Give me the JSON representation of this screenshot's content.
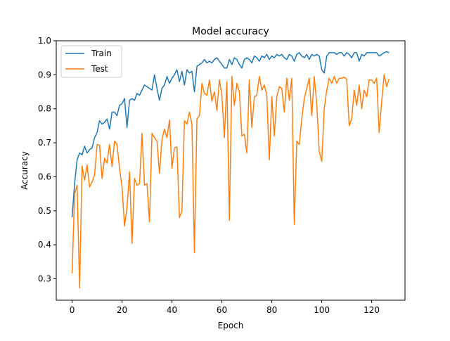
{
  "chart_data": {
    "type": "line",
    "title": "Model accuracy",
    "xlabel": "Epoch",
    "ylabel": "Accuracy",
    "xlim": [
      -6.35,
      133.35
    ],
    "ylim": [
      0.237,
      1.0
    ],
    "xticks": [
      0,
      20,
      40,
      60,
      80,
      100,
      120
    ],
    "yticks": [
      0.3,
      0.4,
      0.5,
      0.6,
      0.7,
      0.8,
      0.9,
      1.0
    ],
    "xtick_labels": [
      "0",
      "20",
      "40",
      "60",
      "80",
      "100",
      "120"
    ],
    "ytick_labels": [
      "0.3",
      "0.4",
      "0.5",
      "0.6",
      "0.7",
      "0.8",
      "0.9",
      "1.0"
    ],
    "grid": false,
    "legend_position": "upper-left",
    "series": [
      {
        "name": "Train",
        "color": "#1f77b4",
        "x": [
          0,
          1,
          2,
          3,
          4,
          5,
          6,
          7,
          8,
          9,
          10,
          11,
          12,
          13,
          14,
          15,
          16,
          17,
          18,
          19,
          20,
          21,
          22,
          23,
          24,
          25,
          26,
          27,
          28,
          29,
          30,
          31,
          32,
          33,
          34,
          35,
          36,
          37,
          38,
          39,
          40,
          41,
          42,
          43,
          44,
          45,
          46,
          47,
          48,
          49,
          50,
          51,
          52,
          53,
          54,
          55,
          56,
          57,
          58,
          59,
          60,
          61,
          62,
          63,
          64,
          65,
          66,
          67,
          68,
          69,
          70,
          71,
          72,
          73,
          74,
          75,
          76,
          77,
          78,
          79,
          80,
          81,
          82,
          83,
          84,
          85,
          86,
          87,
          88,
          89,
          90,
          91,
          92,
          93,
          94,
          95,
          96,
          97,
          98,
          99,
          100,
          101,
          102,
          103,
          104,
          105,
          106,
          107,
          108,
          109,
          110,
          111,
          112,
          113,
          114,
          115,
          116,
          117,
          118,
          119,
          120,
          121,
          122,
          123,
          124,
          125,
          126,
          127
        ],
        "values": [
          0.481,
          0.58,
          0.65,
          0.67,
          0.665,
          0.69,
          0.67,
          0.68,
          0.685,
          0.715,
          0.73,
          0.765,
          0.755,
          0.76,
          0.77,
          0.74,
          0.79,
          0.79,
          0.78,
          0.81,
          0.815,
          0.83,
          0.745,
          0.825,
          0.83,
          0.825,
          0.845,
          0.84,
          0.855,
          0.87,
          0.865,
          0.86,
          0.855,
          0.9,
          0.86,
          0.825,
          0.86,
          0.87,
          0.895,
          0.875,
          0.89,
          0.9,
          0.915,
          0.88,
          0.91,
          0.87,
          0.915,
          0.905,
          0.91,
          0.85,
          0.925,
          0.93,
          0.935,
          0.945,
          0.935,
          0.94,
          0.935,
          0.945,
          0.95,
          0.94,
          0.93,
          0.92,
          0.92,
          0.945,
          0.93,
          0.95,
          0.945,
          0.93,
          0.92,
          0.945,
          0.95,
          0.945,
          0.935,
          0.955,
          0.95,
          0.94,
          0.955,
          0.95,
          0.96,
          0.945,
          0.955,
          0.95,
          0.96,
          0.955,
          0.96,
          0.95,
          0.945,
          0.96,
          0.955,
          0.94,
          0.96,
          0.965,
          0.955,
          0.95,
          0.96,
          0.945,
          0.96,
          0.955,
          0.96,
          0.955,
          0.915,
          0.905,
          0.955,
          0.965,
          0.965,
          0.965,
          0.96,
          0.965,
          0.965,
          0.955,
          0.965,
          0.96,
          0.95,
          0.965,
          0.965,
          0.94,
          0.96,
          0.955,
          0.965,
          0.965,
          0.965,
          0.965,
          0.965,
          0.955,
          0.96,
          0.965,
          0.968,
          0.965
        ]
      },
      {
        "name": "Test",
        "color": "#ff7f0e",
        "x": [
          0,
          1,
          2,
          3,
          4,
          5,
          6,
          7,
          8,
          9,
          10,
          11,
          12,
          13,
          14,
          15,
          16,
          17,
          18,
          19,
          20,
          21,
          22,
          23,
          24,
          25,
          26,
          27,
          28,
          29,
          30,
          31,
          32,
          33,
          34,
          35,
          36,
          37,
          38,
          39,
          40,
          41,
          42,
          43,
          44,
          45,
          46,
          47,
          48,
          49,
          50,
          51,
          52,
          53,
          54,
          55,
          56,
          57,
          58,
          59,
          60,
          61,
          62,
          63,
          64,
          65,
          66,
          67,
          68,
          69,
          70,
          71,
          72,
          73,
          74,
          75,
          76,
          77,
          78,
          79,
          80,
          81,
          82,
          83,
          84,
          85,
          86,
          87,
          88,
          89,
          90,
          91,
          92,
          93,
          94,
          95,
          96,
          97,
          98,
          99,
          100,
          101,
          102,
          103,
          104,
          105,
          106,
          107,
          108,
          109,
          110,
          111,
          112,
          113,
          114,
          115,
          116,
          117,
          118,
          119,
          120,
          121,
          122,
          123,
          124,
          125,
          126,
          127
        ],
        "values": [
          0.316,
          0.55,
          0.575,
          0.273,
          0.632,
          0.59,
          0.635,
          0.57,
          0.585,
          0.605,
          0.695,
          0.693,
          0.595,
          0.655,
          0.64,
          0.695,
          0.63,
          0.705,
          0.695,
          0.625,
          0.57,
          0.455,
          0.51,
          0.615,
          0.405,
          0.595,
          0.575,
          0.58,
          0.728,
          0.575,
          0.58,
          0.467,
          0.728,
          0.715,
          0.705,
          0.61,
          0.71,
          0.74,
          0.715,
          0.767,
          0.625,
          0.685,
          0.688,
          0.48,
          0.5,
          0.765,
          0.755,
          0.79,
          0.755,
          0.376,
          0.77,
          0.78,
          0.875,
          0.845,
          0.84,
          0.885,
          0.822,
          0.85,
          0.795,
          0.885,
          0.84,
          0.715,
          0.88,
          0.472,
          0.895,
          0.81,
          0.875,
          0.85,
          0.72,
          0.725,
          0.67,
          0.885,
          0.745,
          0.835,
          0.84,
          0.895,
          0.855,
          0.87,
          0.84,
          0.65,
          0.835,
          0.72,
          0.835,
          0.865,
          0.86,
          0.79,
          0.89,
          0.825,
          0.89,
          0.46,
          0.705,
          0.695,
          0.77,
          0.83,
          0.86,
          0.89,
          0.78,
          0.895,
          0.815,
          0.675,
          0.645,
          0.8,
          0.855,
          0.89,
          0.875,
          0.895,
          0.875,
          0.89,
          0.89,
          0.893,
          0.887,
          0.75,
          0.77,
          0.855,
          0.81,
          0.87,
          0.8,
          0.855,
          0.835,
          0.885,
          0.885,
          0.875,
          0.89,
          0.73,
          0.82,
          0.9,
          0.865,
          0.888
        ]
      }
    ]
  }
}
